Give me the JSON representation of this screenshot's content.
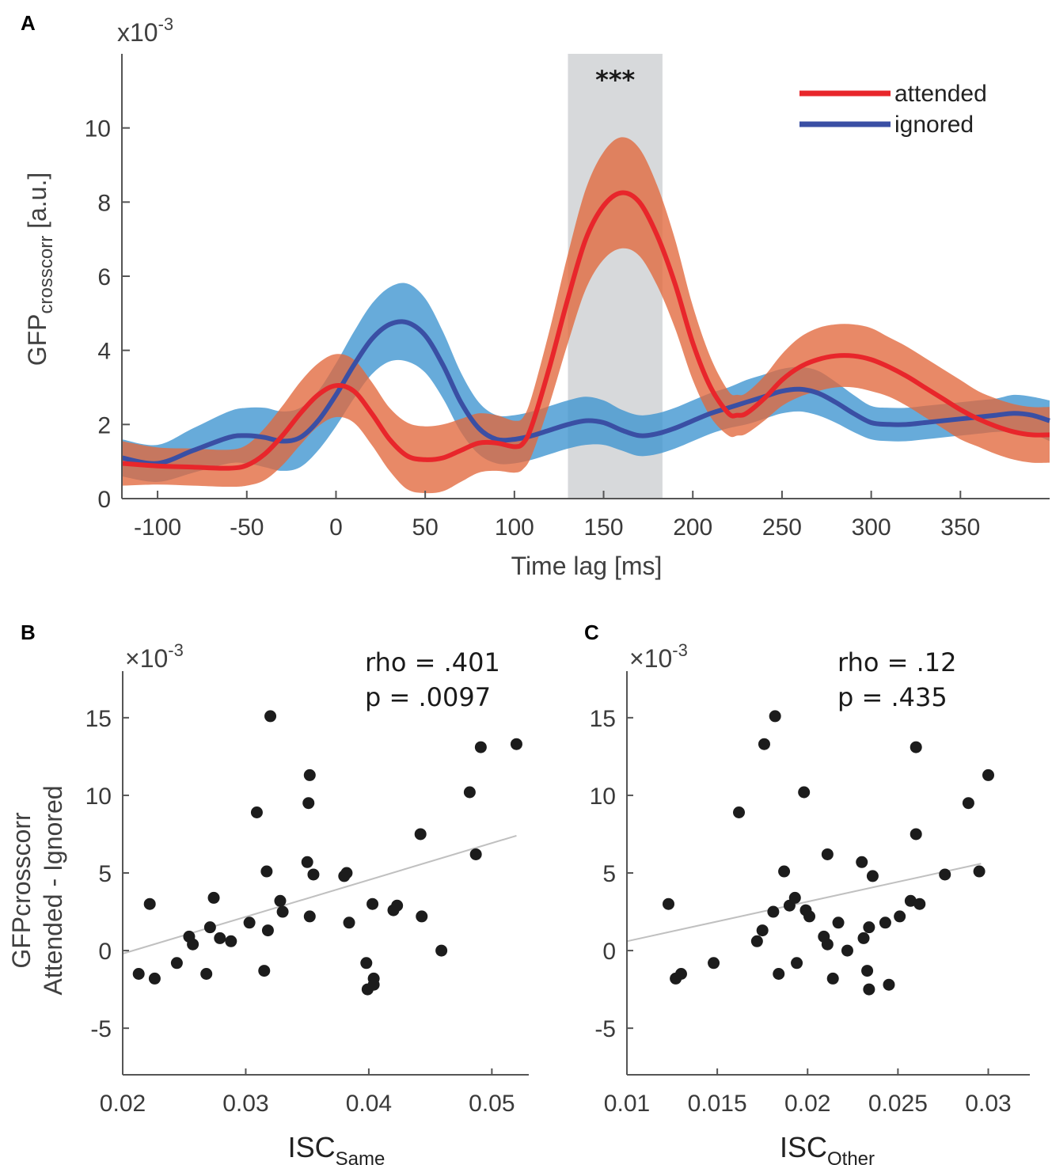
{
  "colors": {
    "attended": "#e8262b",
    "attended_band": "#e2683c",
    "ignored": "#3a4fa4",
    "ignored_band": "#3c94cf",
    "highlight": "#c9cccf",
    "dots": "#1c1c1c",
    "fit": "#c0c0c0"
  },
  "chart_data": [
    {
      "id": "A",
      "type": "line",
      "panel_label": "A",
      "title": "",
      "xlabel": "Time lag [ms]",
      "ylabel_main": "GFP",
      "ylabel_sub": "crosscorr",
      "ylabel_unit": " [a.u.]",
      "y_exponent": "x10",
      "y_exponent_power": "-3",
      "xlim": [
        -120,
        400
      ],
      "ylim": [
        0,
        12
      ],
      "xticks": [
        -100,
        -50,
        0,
        50,
        100,
        150,
        200,
        250,
        300,
        350
      ],
      "xtick_labels": [
        "-100",
        "-50",
        "0",
        "50",
        "100",
        "150",
        "200",
        "250",
        "300",
        "350"
      ],
      "yticks": [
        0,
        2,
        4,
        6,
        8,
        10
      ],
      "ytick_labels": [
        "0",
        "2",
        "4",
        "6",
        "8",
        "10"
      ],
      "significance": {
        "x_range": [
          130,
          183
        ],
        "label": "***"
      },
      "legend": {
        "position": "top-right",
        "entries": [
          "attended",
          "ignored"
        ]
      },
      "series": [
        {
          "name": "attended",
          "x": [
            -120,
            -100,
            -80,
            -60,
            -50,
            -40,
            -30,
            -20,
            -10,
            0,
            10,
            20,
            30,
            40,
            50,
            60,
            70,
            80,
            90,
            100,
            105,
            110,
            120,
            130,
            140,
            150,
            160,
            170,
            180,
            190,
            200,
            210,
            220,
            225,
            230,
            240,
            250,
            260,
            270,
            280,
            290,
            300,
            310,
            320,
            330,
            340,
            350,
            360,
            370,
            380,
            390,
            400
          ],
          "mean": [
            0.95,
            0.88,
            0.85,
            0.82,
            0.9,
            1.2,
            1.7,
            2.3,
            2.8,
            3.05,
            2.9,
            2.3,
            1.6,
            1.15,
            1.05,
            1.1,
            1.3,
            1.5,
            1.5,
            1.4,
            1.5,
            2.0,
            3.6,
            5.4,
            7.0,
            7.9,
            8.25,
            8.0,
            7.1,
            5.8,
            4.2,
            3.0,
            2.3,
            2.25,
            2.3,
            2.7,
            3.2,
            3.55,
            3.75,
            3.85,
            3.85,
            3.75,
            3.55,
            3.3,
            3.0,
            2.7,
            2.4,
            2.15,
            1.95,
            1.8,
            1.72,
            1.72
          ],
          "band_half_width": [
            0.6,
            0.5,
            0.5,
            0.5,
            0.55,
            0.7,
            0.8,
            0.85,
            0.85,
            0.85,
            0.85,
            0.85,
            0.85,
            0.9,
            0.9,
            0.9,
            0.85,
            0.8,
            0.75,
            0.7,
            0.7,
            0.8,
            1.0,
            1.2,
            1.35,
            1.45,
            1.5,
            1.45,
            1.35,
            1.2,
            1.0,
            0.8,
            0.6,
            0.55,
            0.55,
            0.6,
            0.7,
            0.8,
            0.85,
            0.85,
            0.85,
            0.85,
            0.8,
            0.8,
            0.8,
            0.8,
            0.8,
            0.75,
            0.75,
            0.75,
            0.75,
            0.75
          ]
        },
        {
          "name": "ignored",
          "x": [
            -120,
            -100,
            -80,
            -60,
            -50,
            -40,
            -30,
            -20,
            -10,
            0,
            10,
            20,
            30,
            40,
            50,
            60,
            70,
            80,
            90,
            100,
            110,
            120,
            130,
            140,
            150,
            160,
            170,
            180,
            190,
            200,
            210,
            220,
            230,
            240,
            250,
            260,
            270,
            280,
            290,
            300,
            310,
            320,
            330,
            340,
            350,
            360,
            370,
            380,
            390,
            400
          ],
          "mean": [
            1.1,
            0.95,
            1.3,
            1.65,
            1.7,
            1.65,
            1.55,
            1.65,
            2.1,
            2.8,
            3.6,
            4.3,
            4.7,
            4.75,
            4.4,
            3.6,
            2.6,
            1.9,
            1.6,
            1.6,
            1.7,
            1.85,
            2.0,
            2.1,
            2.05,
            1.85,
            1.7,
            1.75,
            1.9,
            2.1,
            2.3,
            2.45,
            2.6,
            2.75,
            2.9,
            2.95,
            2.85,
            2.6,
            2.3,
            2.05,
            2.0,
            2.0,
            2.05,
            2.1,
            2.15,
            2.2,
            2.25,
            2.3,
            2.25,
            2.1
          ],
          "band_half_width": [
            0.5,
            0.5,
            0.6,
            0.7,
            0.75,
            0.8,
            0.8,
            0.8,
            0.8,
            0.85,
            0.9,
            0.95,
            1.0,
            1.05,
            1.0,
            0.9,
            0.8,
            0.7,
            0.65,
            0.65,
            0.65,
            0.65,
            0.65,
            0.65,
            0.6,
            0.55,
            0.55,
            0.55,
            0.55,
            0.55,
            0.55,
            0.55,
            0.6,
            0.6,
            0.6,
            0.6,
            0.6,
            0.55,
            0.5,
            0.45,
            0.45,
            0.45,
            0.45,
            0.45,
            0.45,
            0.45,
            0.45,
            0.5,
            0.5,
            0.55
          ]
        }
      ]
    },
    {
      "id": "B",
      "type": "scatter",
      "panel_label": "B",
      "xlabel_main": "ISC",
      "xlabel_sub": "Same",
      "ylabel_line1": "GFPcrosscorr",
      "ylabel_line2": "Attended - Ignored",
      "y_exponent": "×10",
      "y_exponent_power": "-3",
      "xlim": [
        0.02,
        0.053
      ],
      "ylim": [
        -8,
        18
      ],
      "xticks": [
        0.02,
        0.03,
        0.04,
        0.05
      ],
      "xtick_labels": [
        "0.02",
        "0.03",
        "0.04",
        "0.05"
      ],
      "yticks": [
        -5,
        0,
        5,
        10,
        15
      ],
      "ytick_labels": [
        "-5",
        "0",
        "5",
        "10",
        "15"
      ],
      "stats": {
        "rho": "rho = .401",
        "p": "p = .0097"
      },
      "fit_line": {
        "x": [
          0.02,
          0.052
        ],
        "y": [
          -0.2,
          7.4
        ]
      },
      "points": [
        [
          0.0213,
          -1.5
        ],
        [
          0.0222,
          3.0
        ],
        [
          0.0226,
          -1.8
        ],
        [
          0.0244,
          -0.8
        ],
        [
          0.0254,
          0.9
        ],
        [
          0.0257,
          0.4
        ],
        [
          0.0268,
          -1.5
        ],
        [
          0.0271,
          1.5
        ],
        [
          0.0274,
          3.4
        ],
        [
          0.0279,
          0.8
        ],
        [
          0.0288,
          0.6
        ],
        [
          0.0303,
          1.8
        ],
        [
          0.0309,
          8.9
        ],
        [
          0.0315,
          -1.3
        ],
        [
          0.0317,
          5.1
        ],
        [
          0.0318,
          1.3
        ],
        [
          0.032,
          15.1
        ],
        [
          0.0328,
          3.2
        ],
        [
          0.033,
          2.5
        ],
        [
          0.035,
          5.7
        ],
        [
          0.0351,
          9.5
        ],
        [
          0.0352,
          11.3
        ],
        [
          0.0352,
          2.2
        ],
        [
          0.0355,
          4.9
        ],
        [
          0.038,
          4.8
        ],
        [
          0.0382,
          5.0
        ],
        [
          0.0384,
          1.8
        ],
        [
          0.0398,
          -0.8
        ],
        [
          0.0399,
          -2.5
        ],
        [
          0.0403,
          3.0
        ],
        [
          0.0404,
          -1.8
        ],
        [
          0.0404,
          -2.2
        ],
        [
          0.042,
          2.6
        ],
        [
          0.0423,
          2.9
        ],
        [
          0.0442,
          7.5
        ],
        [
          0.0443,
          2.2
        ],
        [
          0.0459,
          0.0
        ],
        [
          0.0482,
          10.2
        ],
        [
          0.0487,
          6.2
        ],
        [
          0.0491,
          13.1
        ],
        [
          0.052,
          13.3
        ]
      ]
    },
    {
      "id": "C",
      "type": "scatter",
      "panel_label": "C",
      "xlabel_main": "ISC",
      "xlabel_sub": "Other",
      "y_exponent": "×10",
      "y_exponent_power": "-3",
      "xlim": [
        0.01,
        0.0323
      ],
      "ylim": [
        -8,
        18
      ],
      "xticks": [
        0.01,
        0.015,
        0.02,
        0.025,
        0.03
      ],
      "xtick_labels": [
        "0.01",
        "0.015",
        "0.02",
        "0.025",
        "0.03"
      ],
      "yticks": [
        -5,
        0,
        5,
        10,
        15
      ],
      "ytick_labels": [
        "-5",
        "0",
        "5",
        "10",
        "15"
      ],
      "stats": {
        "rho": "rho = .12",
        "p": "p = .435"
      },
      "fit_line": {
        "x": [
          0.01,
          0.0296
        ],
        "y": [
          0.6,
          5.6
        ]
      },
      "points": [
        [
          0.0123,
          3.0
        ],
        [
          0.0127,
          -1.8
        ],
        [
          0.013,
          -1.5
        ],
        [
          0.0148,
          -0.8
        ],
        [
          0.0162,
          8.9
        ],
        [
          0.0172,
          0.6
        ],
        [
          0.0175,
          1.3
        ],
        [
          0.0176,
          13.3
        ],
        [
          0.0181,
          2.5
        ],
        [
          0.0182,
          15.1
        ],
        [
          0.0184,
          -1.5
        ],
        [
          0.0187,
          5.1
        ],
        [
          0.019,
          2.9
        ],
        [
          0.0193,
          3.4
        ],
        [
          0.0194,
          -0.8
        ],
        [
          0.0198,
          10.2
        ],
        [
          0.0199,
          2.6
        ],
        [
          0.0201,
          2.2
        ],
        [
          0.0209,
          0.9
        ],
        [
          0.0211,
          6.2
        ],
        [
          0.0211,
          0.4
        ],
        [
          0.0214,
          -1.8
        ],
        [
          0.0217,
          1.8
        ],
        [
          0.0222,
          -0.0
        ],
        [
          0.023,
          5.7
        ],
        [
          0.0231,
          0.8
        ],
        [
          0.0233,
          -1.3
        ],
        [
          0.0234,
          1.5
        ],
        [
          0.0234,
          -2.5
        ],
        [
          0.0236,
          4.8
        ],
        [
          0.0243,
          1.8
        ],
        [
          0.0245,
          -2.2
        ],
        [
          0.0251,
          2.2
        ],
        [
          0.0257,
          3.2
        ],
        [
          0.026,
          13.1
        ],
        [
          0.026,
          7.5
        ],
        [
          0.0262,
          3.0
        ],
        [
          0.0276,
          4.9
        ],
        [
          0.0289,
          9.5
        ],
        [
          0.0295,
          5.1
        ],
        [
          0.03,
          11.3
        ]
      ]
    }
  ]
}
